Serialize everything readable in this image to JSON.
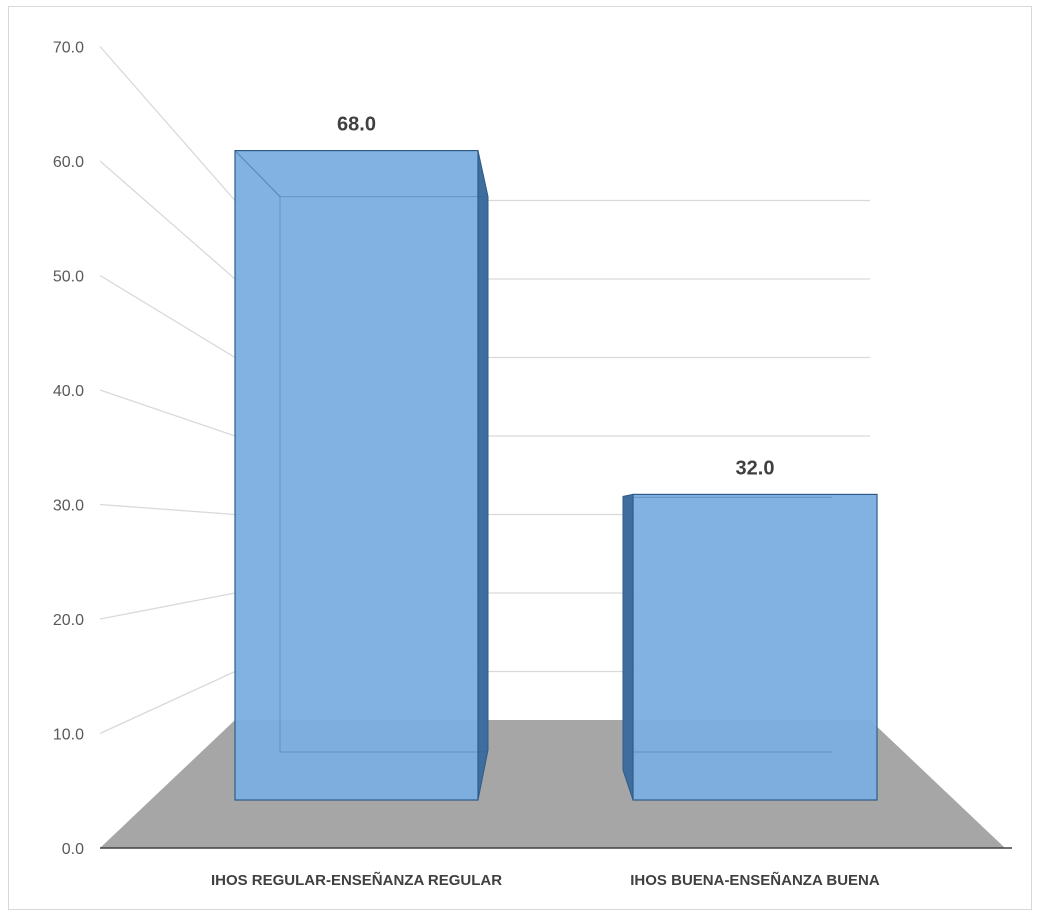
{
  "chart_data": {
    "type": "bar",
    "style": "3d-clustered-column",
    "categories": [
      "IHOS REGULAR-ENSEÑANZA REGULAR",
      "IHOS BUENA-ENSEÑANZA BUENA"
    ],
    "values": [
      68.0,
      32.0
    ],
    "data_labels": [
      "68.0",
      "32.0"
    ],
    "ylim": [
      0,
      70
    ],
    "yticks": [
      "0.0",
      "10.0",
      "20.0",
      "30.0",
      "40.0",
      "50.0",
      "60.0",
      "70.0"
    ],
    "grid": true,
    "legend": "none",
    "title": "",
    "xlabel": "",
    "ylabel": ""
  },
  "colors": {
    "bar_front": "#7aaee0",
    "bar_side": "#3f6d9e",
    "bar_top": "#9dc6ef",
    "bar_edge": "#2e5c8a",
    "floor": "#a6a6a6",
    "grid": "#d9d9d9",
    "axis": "#404040"
  }
}
